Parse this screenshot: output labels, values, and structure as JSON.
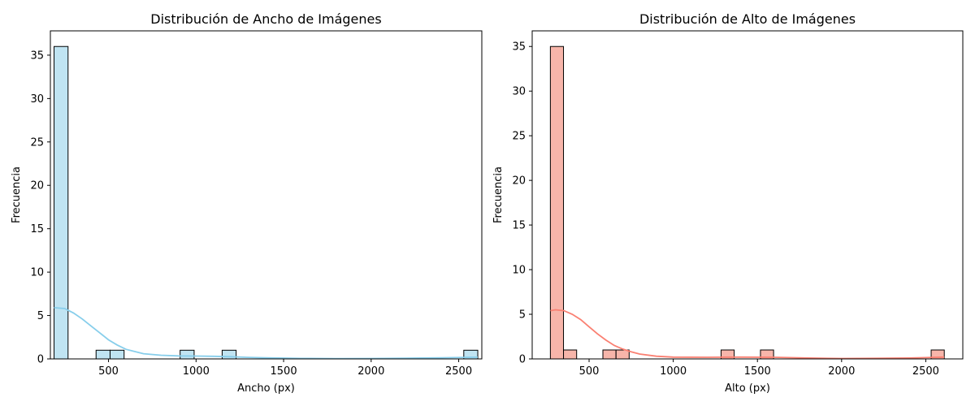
{
  "chart_data": [
    {
      "type": "bar",
      "title": "Distribución de Ancho de Imágenes",
      "xlabel": "Ancho (px)",
      "ylabel": "Frecuencia",
      "xlim": [
        168,
        2632
      ],
      "ylim": [
        0,
        37.8
      ],
      "xticks": [
        500,
        1000,
        1500,
        2000,
        2500
      ],
      "yticks": [
        0,
        5,
        10,
        15,
        20,
        25,
        30,
        35
      ],
      "bar_color": "#c0e4f2",
      "edge_color": "#000000",
      "kde_color": "#87ceeb",
      "grid": false,
      "bins": [
        {
          "x0": 189,
          "x1": 269,
          "count": 36
        },
        {
          "x0": 429,
          "x1": 509,
          "count": 1
        },
        {
          "x0": 509,
          "x1": 589,
          "count": 1
        },
        {
          "x0": 909,
          "x1": 989,
          "count": 1
        },
        {
          "x0": 1149,
          "x1": 1229,
          "count": 1
        },
        {
          "x0": 2529,
          "x1": 2609,
          "count": 1
        }
      ],
      "kde": {
        "x": [
          189,
          250,
          300,
          350,
          400,
          450,
          500,
          550,
          600,
          700,
          800,
          900,
          1000,
          1100,
          1200,
          1300,
          1400,
          1600,
          1800,
          2000,
          2200,
          2400,
          2609
        ],
        "y": [
          5.9,
          5.8,
          5.3,
          4.6,
          3.8,
          3.0,
          2.2,
          1.6,
          1.1,
          0.6,
          0.42,
          0.35,
          0.33,
          0.3,
          0.25,
          0.18,
          0.12,
          0.06,
          0.04,
          0.05,
          0.08,
          0.13,
          0.2
        ]
      }
    },
    {
      "type": "bar",
      "title": "Distribución de Alto de Imágenes",
      "xlabel": "Alto (px)",
      "ylabel": "Frecuencia",
      "xlim": [
        162,
        2720
      ],
      "ylim": [
        0,
        36.75
      ],
      "xticks": [
        500,
        1000,
        1500,
        2000,
        2500
      ],
      "yticks": [
        0,
        5,
        10,
        15,
        20,
        25,
        30,
        35
      ],
      "bar_color": "#f7b5aa",
      "edge_color": "#000000",
      "kde_color": "#fa8072",
      "grid": false,
      "bins": [
        {
          "x0": 270,
          "x1": 348,
          "count": 35
        },
        {
          "x0": 348,
          "x1": 426,
          "count": 1
        },
        {
          "x0": 582,
          "x1": 660,
          "count": 1
        },
        {
          "x0": 660,
          "x1": 738,
          "count": 1
        },
        {
          "x0": 1284,
          "x1": 1362,
          "count": 1
        },
        {
          "x0": 1518,
          "x1": 1596,
          "count": 1
        },
        {
          "x0": 2532,
          "x1": 2610,
          "count": 1
        }
      ],
      "kde": {
        "x": [
          270,
          300,
          350,
          400,
          450,
          500,
          550,
          600,
          650,
          700,
          750,
          800,
          900,
          1000,
          1200,
          1400,
          1600,
          1800,
          2000,
          2200,
          2400,
          2610
        ],
        "y": [
          5.4,
          5.5,
          5.4,
          5.0,
          4.4,
          3.6,
          2.8,
          2.1,
          1.5,
          1.1,
          0.8,
          0.55,
          0.3,
          0.2,
          0.18,
          0.2,
          0.18,
          0.1,
          0.05,
          0.06,
          0.1,
          0.2
        ]
      }
    }
  ]
}
